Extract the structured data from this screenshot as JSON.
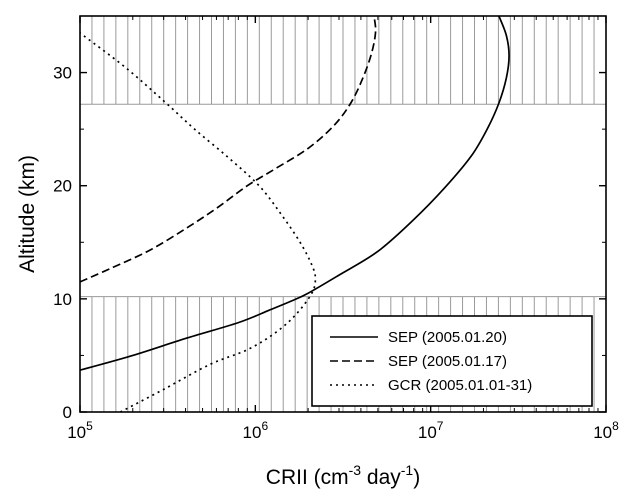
{
  "chart_data": {
    "type": "line",
    "xlabel": {
      "base": "CRII (cm",
      "exp1": "-3",
      "mid": " day",
      "exp2": "-1",
      "end": ")"
    },
    "ylabel": "Altitude (km)",
    "x_scale": "log",
    "xlim": [
      100000,
      100000000
    ],
    "ylim": [
      0,
      35
    ],
    "x_ticks": [
      {
        "base": "10",
        "exp": "5",
        "value": 100000
      },
      {
        "base": "10",
        "exp": "6",
        "value": 1000000
      },
      {
        "base": "10",
        "exp": "7",
        "value": 10000000
      },
      {
        "base": "10",
        "exp": "8",
        "value": 100000000
      }
    ],
    "y_ticks": [
      {
        "label": "0",
        "value": 0
      },
      {
        "label": "10",
        "value": 10
      },
      {
        "label": "20",
        "value": 20
      },
      {
        "label": "30",
        "value": 30
      }
    ],
    "shaded_bands": [
      [
        0,
        10.2
      ],
      [
        27.2,
        35
      ]
    ],
    "legend_position": "bottom-right",
    "series": [
      {
        "name": "SEP (2005.01.20)",
        "style": "solid",
        "points": [
          [
            100000,
            3.7
          ],
          [
            200000,
            5.0
          ],
          [
            400000,
            6.5
          ],
          [
            800000,
            7.9
          ],
          [
            1200000,
            9.0
          ],
          [
            1600000,
            9.8
          ],
          [
            2000000,
            10.5
          ],
          [
            3000000,
            12.1
          ],
          [
            5000000,
            14.2
          ],
          [
            8000000,
            17.0
          ],
          [
            12000000,
            19.8
          ],
          [
            17000000,
            22.6
          ],
          [
            21000000,
            25.0
          ],
          [
            24500000,
            27.3
          ],
          [
            27000000,
            29.5
          ],
          [
            28000000,
            31.5
          ],
          [
            27000000,
            33.3
          ],
          [
            24500000,
            35.0
          ]
        ]
      },
      {
        "name": "SEP (2005.01.17)",
        "style": "dashed",
        "points": [
          [
            100000,
            11.5
          ],
          [
            150000,
            12.7
          ],
          [
            250000,
            14.3
          ],
          [
            400000,
            16.2
          ],
          [
            600000,
            18.0
          ],
          [
            900000,
            20.0
          ],
          [
            1300000,
            21.5
          ],
          [
            2000000,
            23.3
          ],
          [
            2800000,
            25.3
          ],
          [
            3500000,
            27.3
          ],
          [
            4100000,
            29.5
          ],
          [
            4600000,
            31.7
          ],
          [
            4850000,
            33.6
          ],
          [
            4750000,
            35.0
          ]
        ]
      },
      {
        "name": "GCR (2005.01.01-31)",
        "style": "dotted",
        "points": [
          [
            170000,
            0.0
          ],
          [
            300000,
            2.0
          ],
          [
            550000,
            4.2
          ],
          [
            900000,
            5.5
          ],
          [
            1300000,
            7.0
          ],
          [
            1700000,
            8.6
          ],
          [
            2100000,
            10.5
          ],
          [
            2200000,
            11.8
          ],
          [
            2100000,
            13.0
          ],
          [
            1800000,
            15.0
          ],
          [
            1400000,
            17.5
          ],
          [
            1050000,
            20.0
          ],
          [
            700000,
            22.5
          ],
          [
            450000,
            25.0
          ],
          [
            300000,
            27.5
          ],
          [
            180000,
            30.5
          ],
          [
            100000,
            33.5
          ]
        ]
      }
    ]
  }
}
